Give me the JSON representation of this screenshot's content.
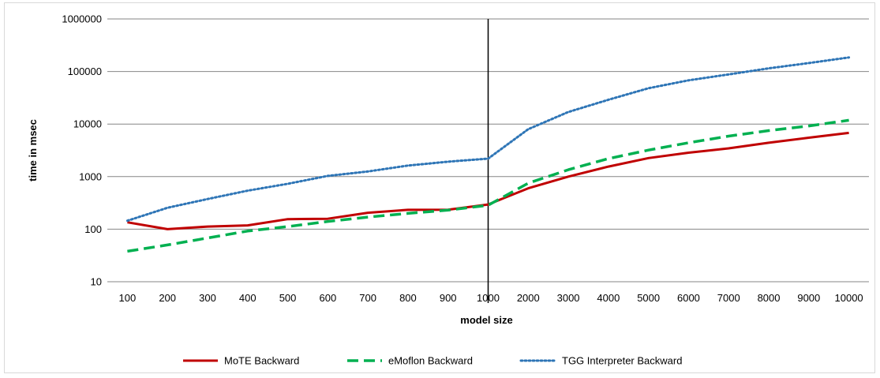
{
  "chart_data": {
    "type": "line",
    "title": "",
    "xlabel": "model size",
    "ylabel": "time in msec",
    "y_scale": "log",
    "ylim": [
      10,
      1000000
    ],
    "y_ticks": [
      "10",
      "100",
      "1000",
      "10000",
      "100000",
      "1000000"
    ],
    "categories": [
      "100",
      "200",
      "300",
      "400",
      "500",
      "600",
      "700",
      "800",
      "900",
      "1000",
      "2000",
      "3000",
      "4000",
      "5000",
      "6000",
      "7000",
      "8000",
      "9000",
      "10000"
    ],
    "grid": "horizontal",
    "legend_position": "bottom",
    "divider_after_category": "1000",
    "series": [
      {
        "name": "MoTE Backward",
        "color": "#c00000",
        "style": "solid",
        "values": [
          135,
          100,
          112,
          118,
          155,
          158,
          205,
          233,
          235,
          295,
          600,
          1000,
          1550,
          2250,
          2850,
          3450,
          4400,
          5500,
          6800
        ]
      },
      {
        "name": "eMoflon Backward",
        "color": "#00b050",
        "style": "dashed",
        "values": [
          38,
          50,
          68,
          92,
          112,
          140,
          170,
          200,
          230,
          285,
          750,
          1350,
          2200,
          3200,
          4400,
          5900,
          7500,
          9200,
          11800
        ]
      },
      {
        "name": "TGG Interpreter Backward",
        "color": "#2e75b6",
        "style": "dotted",
        "values": [
          145,
          255,
          375,
          540,
          730,
          1030,
          1250,
          1620,
          1920,
          2200,
          8000,
          17000,
          29000,
          48000,
          68000,
          88000,
          115000,
          145000,
          185000
        ]
      }
    ]
  }
}
